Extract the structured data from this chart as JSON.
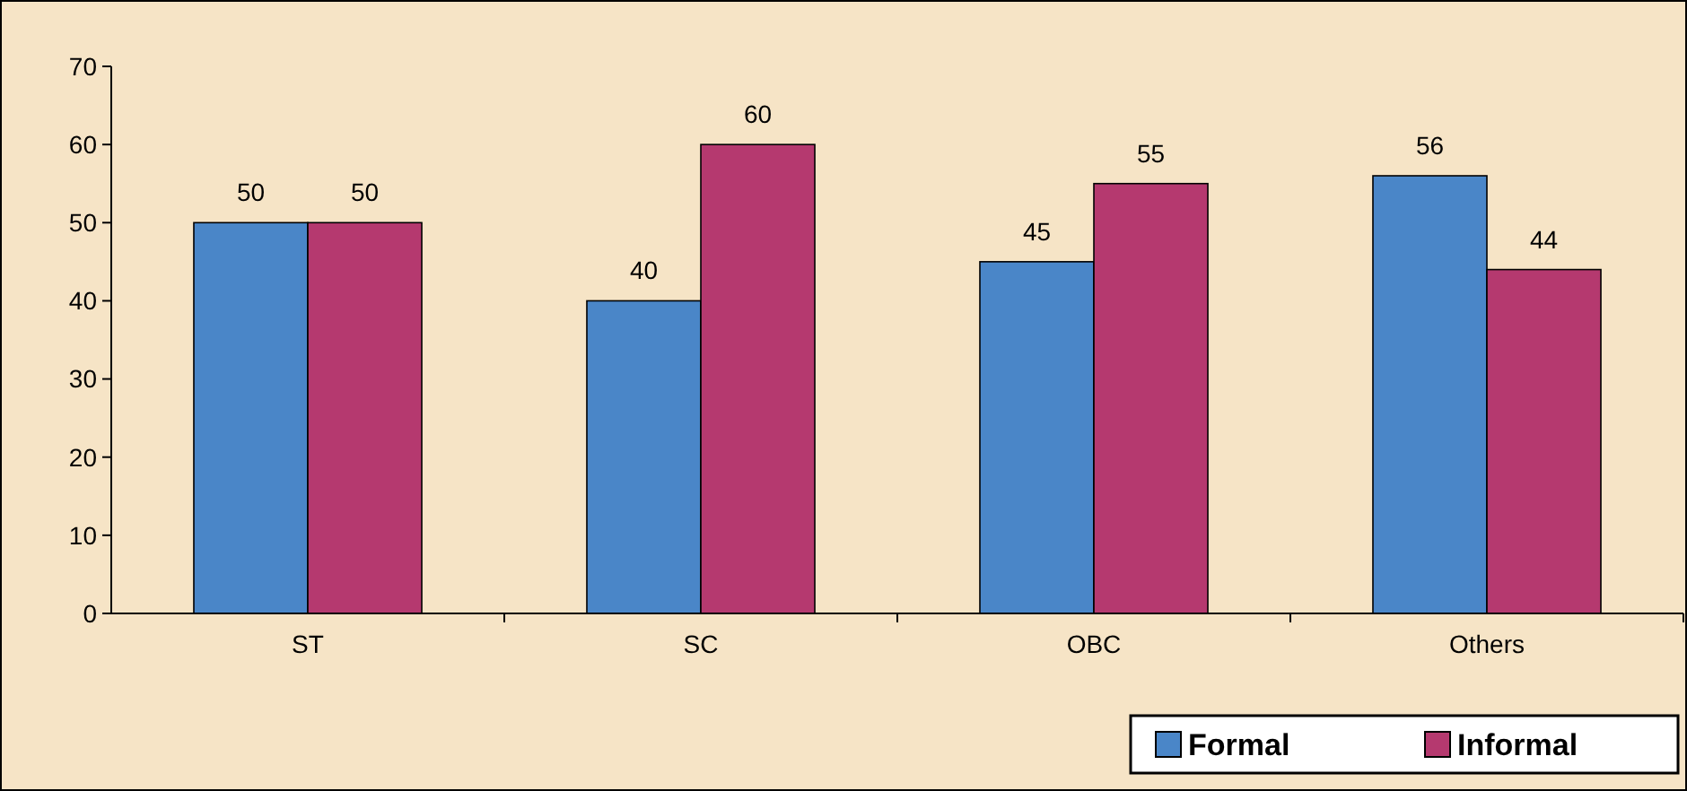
{
  "chart_data": {
    "type": "bar",
    "categories": [
      "ST",
      "SC",
      "OBC",
      "Others"
    ],
    "series": [
      {
        "name": "Formal",
        "color": "#4a86c8",
        "values": [
          50,
          40,
          45,
          56
        ]
      },
      {
        "name": "Informal",
        "color": "#b5396f",
        "values": [
          50,
          60,
          55,
          44
        ]
      }
    ],
    "ylim": [
      0,
      70
    ],
    "yticks": [
      0,
      10,
      20,
      30,
      40,
      50,
      60,
      70
    ],
    "data_labels": true,
    "legend": "bottom right",
    "grid": false
  }
}
